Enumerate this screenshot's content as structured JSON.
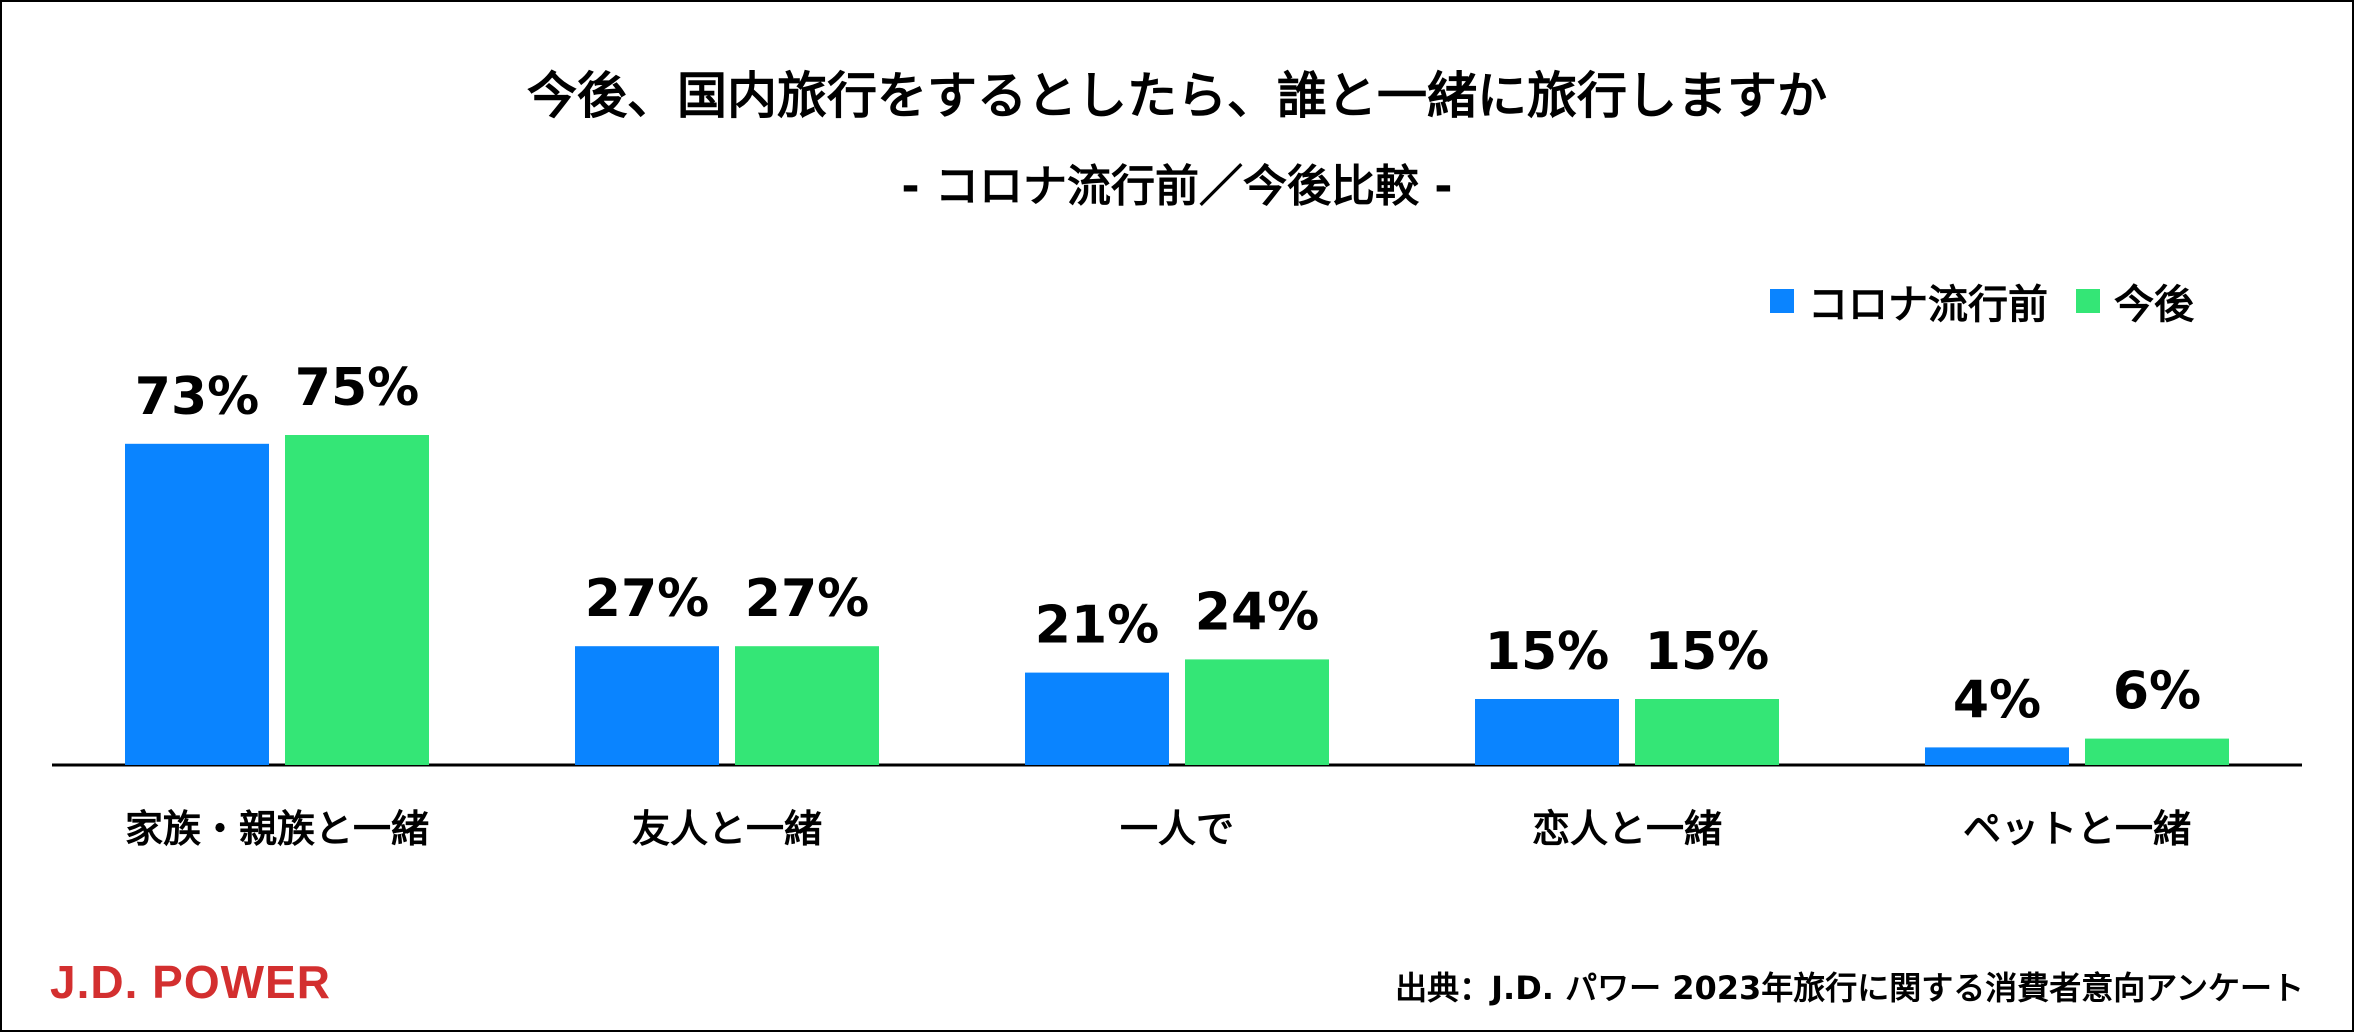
{
  "chart_data": {
    "type": "bar",
    "title": "今後、国内旅行をするとしたら、誰と一緒に旅行しますか",
    "subtitle": "- コロナ流行前／今後比較 -",
    "categories": [
      "家族・親族と一緒",
      "友人と一緒",
      "一人で",
      "恋人と一緒",
      "ペットと一緒"
    ],
    "series": [
      {
        "name": "コロナ流行前",
        "color": "#0A84FF",
        "values": [
          73,
          27,
          21,
          15,
          4
        ]
      },
      {
        "name": "今後",
        "color": "#34E676",
        "values": [
          75,
          27,
          24,
          15,
          6
        ]
      }
    ],
    "value_suffix": "%",
    "ylim": [
      0,
      75
    ],
    "grid": false,
    "legend_position": "top-right",
    "xlabel": "",
    "ylabel": ""
  },
  "footer": {
    "logo": "J.D. POWER",
    "logo_color": "#D32F2F",
    "source": "出典：J.D. パワー 2023年旅行に関する消費者意向アンケート"
  }
}
